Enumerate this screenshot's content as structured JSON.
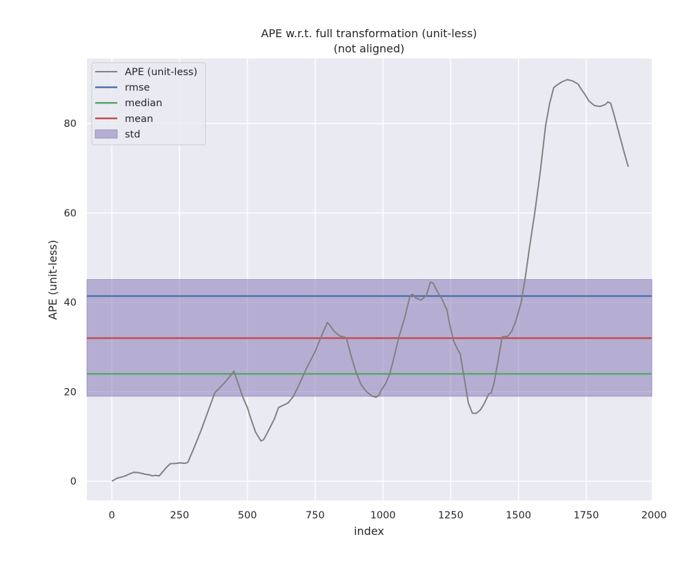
{
  "chart_data": {
    "type": "line",
    "title": "APE w.r.t. full transformation (unit-less)",
    "subtitle": "(not aligned)",
    "xlabel": "index",
    "ylabel": "APE (unit-less)",
    "xlim": [
      -92,
      1992
    ],
    "ylim": [
      -4.3,
      94.5
    ],
    "xticks": [
      0,
      250,
      500,
      750,
      1000,
      1250,
      1500,
      1750,
      2000
    ],
    "yticks": [
      0,
      20,
      40,
      60,
      80
    ],
    "grid": true,
    "legend_position": "top-left",
    "colors": {
      "background": "#eaeaf2",
      "grid": "#ffffff",
      "ape": "#808080",
      "rmse": "#4c72b0",
      "median": "#55a868",
      "mean": "#c44e52",
      "std": "#8172b2"
    },
    "legend": [
      {
        "key": "ape",
        "label": "APE (unit-less)",
        "kind": "line"
      },
      {
        "key": "rmse",
        "label": "rmse",
        "kind": "line"
      },
      {
        "key": "median",
        "label": "median",
        "kind": "line"
      },
      {
        "key": "mean",
        "label": "mean",
        "kind": "line"
      },
      {
        "key": "std",
        "label": "std",
        "kind": "patch"
      }
    ],
    "stats": {
      "rmse": 41.4,
      "median": 24.0,
      "mean": 32.0,
      "std_band": [
        19.0,
        45.1
      ]
    },
    "series": [
      {
        "name": "APE (unit-less)",
        "x": [
          0,
          20,
          40,
          50,
          60,
          80,
          100,
          120,
          140,
          150,
          160,
          175,
          200,
          215,
          240,
          250,
          270,
          280,
          300,
          330,
          360,
          380,
          400,
          420,
          440,
          450,
          465,
          485,
          500,
          510,
          530,
          550,
          560,
          575,
          600,
          615,
          640,
          650,
          670,
          690,
          720,
          750,
          770,
          790,
          795,
          805,
          820,
          840,
          860,
          865,
          885,
          900,
          920,
          940,
          960,
          975,
          985,
          995,
          1010,
          1025,
          1040,
          1060,
          1080,
          1100,
          1110,
          1120,
          1140,
          1160,
          1175,
          1185,
          1200,
          1220,
          1230,
          1235,
          1245,
          1260,
          1275,
          1285,
          1300,
          1315,
          1330,
          1345,
          1360,
          1375,
          1390,
          1400,
          1410,
          1425,
          1440,
          1460,
          1475,
          1490,
          1510,
          1525,
          1540,
          1560,
          1580,
          1600,
          1615,
          1630,
          1640,
          1660,
          1680,
          1700,
          1720,
          1730,
          1745,
          1760,
          1780,
          1800,
          1820,
          1830,
          1840,
          1850,
          1870,
          1890,
          1905
        ],
        "values": [
          0,
          0.7,
          1.0,
          1.2,
          1.5,
          2.0,
          1.9,
          1.6,
          1.4,
          1.2,
          1.3,
          1.2,
          3.0,
          3.9,
          4.0,
          4.1,
          4.0,
          4.2,
          7.0,
          11.5,
          16.5,
          19.8,
          21.0,
          22.3,
          23.8,
          24.6,
          22.0,
          18.5,
          16.5,
          14.5,
          11.0,
          9.0,
          9.3,
          11.0,
          14.0,
          16.5,
          17.2,
          17.5,
          19.0,
          21.5,
          25.5,
          29.0,
          32.0,
          34.8,
          35.5,
          34.8,
          33.5,
          32.5,
          32.2,
          32.0,
          27.5,
          24.5,
          21.5,
          20.0,
          19.0,
          18.8,
          19.2,
          20.5,
          21.8,
          24.0,
          27.5,
          32.5,
          36.5,
          41.5,
          41.8,
          41.0,
          40.5,
          41.5,
          44.5,
          44.3,
          42.5,
          40.5,
          39.0,
          38.5,
          35.5,
          31.5,
          29.5,
          28.5,
          23.0,
          17.5,
          15.2,
          15.2,
          16.0,
          17.5,
          19.5,
          19.8,
          22.0,
          27.0,
          32.3,
          32.4,
          33.5,
          35.8,
          40.0,
          45.5,
          52.0,
          60.0,
          69.0,
          79.5,
          84.5,
          88.0,
          88.5,
          89.3,
          89.8,
          89.5,
          88.8,
          87.8,
          86.5,
          85.0,
          84.0,
          83.8,
          84.2,
          84.8,
          84.5,
          82.5,
          78.0,
          73.5,
          70.3
        ]
      }
    ]
  }
}
